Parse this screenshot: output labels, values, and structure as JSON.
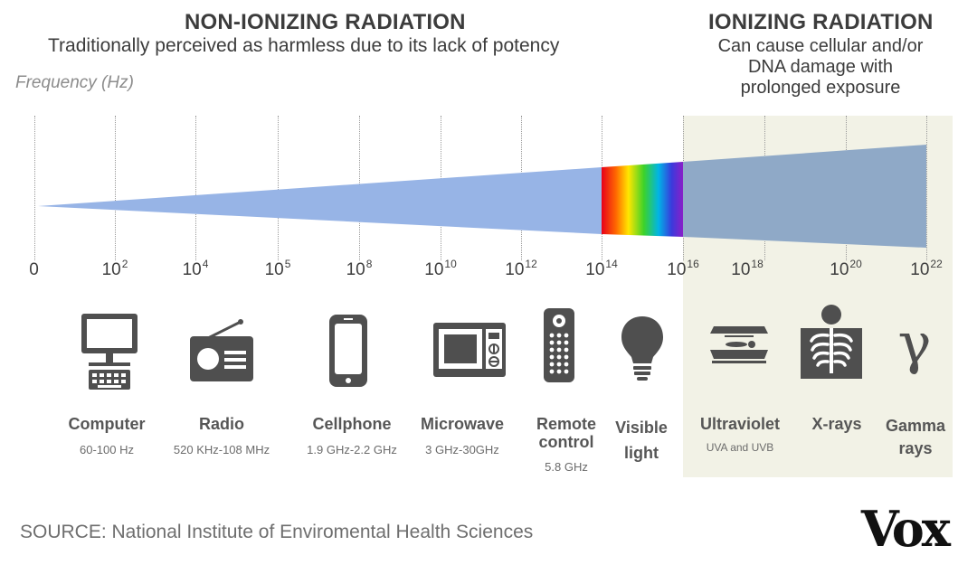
{
  "non_ionizing": {
    "title": "NON-IONIZING RADIATION",
    "subtitle": "Traditionally perceived as harmless due to its lack of potency"
  },
  "ionizing": {
    "title": "IONIZING RADIATION",
    "subtitle_lines": [
      "Can cause cellular and/or",
      "DNA damage with",
      "prolonged exposure"
    ]
  },
  "axis": {
    "label": "Frequency (Hz)",
    "ticks": [
      {
        "base": "0",
        "exp": ""
      },
      {
        "base": "10",
        "exp": "2"
      },
      {
        "base": "10",
        "exp": "4"
      },
      {
        "base": "10",
        "exp": "5"
      },
      {
        "base": "10",
        "exp": "8"
      },
      {
        "base": "10",
        "exp": "10"
      },
      {
        "base": "10",
        "exp": "12"
      },
      {
        "base": "10",
        "exp": "14"
      },
      {
        "base": "10",
        "exp": "16"
      },
      {
        "base": "10",
        "exp": "18"
      },
      {
        "base": "10",
        "exp": "20"
      },
      {
        "base": "10",
        "exp": "22"
      }
    ]
  },
  "sources": [
    {
      "name": "Computer",
      "range": "60-100 Hz",
      "icon": "computer-icon"
    },
    {
      "name": "Radio",
      "range": "520 KHz-108 MHz",
      "icon": "radio-icon"
    },
    {
      "name": "Cellphone",
      "range": "1.9 GHz-2.2 GHz",
      "icon": "cellphone-icon"
    },
    {
      "name": "Microwave",
      "range": "3 GHz-30GHz",
      "icon": "microwave-icon"
    },
    {
      "name": "Remote control",
      "range": "5.8 GHz",
      "icon": "remote-control-icon"
    },
    {
      "name": "Visible light",
      "range": "",
      "icon": "light-bulb-icon"
    },
    {
      "name": "Ultraviolet",
      "range": "UVA and UVB",
      "icon": "tanning-bed-icon"
    },
    {
      "name": "X-rays",
      "range": "",
      "icon": "xray-icon"
    },
    {
      "name": "Gamma rays",
      "range": "",
      "icon": "gamma-icon"
    }
  ],
  "gamma_symbol": "γ",
  "footer": {
    "source": "SOURCE: National Institute of Enviromental Health Sciences",
    "logo": "Vox"
  },
  "colors": {
    "beam": "#97b4e6",
    "ionizing_beam": "#8fa9c7",
    "ionizing_bg": "#f2f2e6",
    "icon": "#4f4f4f"
  }
}
